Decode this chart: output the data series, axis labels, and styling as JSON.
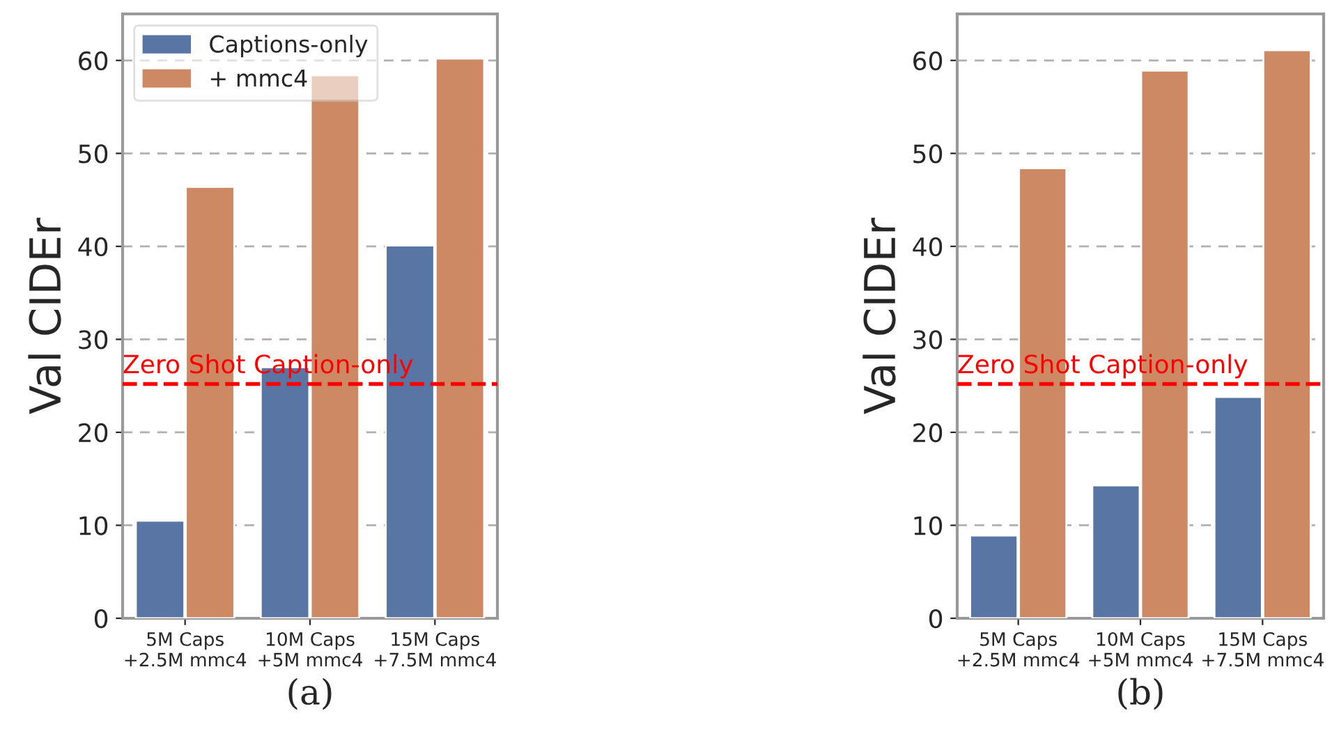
{
  "chart_data": [
    {
      "type": "bar",
      "xlabel": "(a)",
      "ylabel": "Val CIDEr",
      "categories": [
        "5M Caps\n+2.5M mmc4",
        "10M Caps\n+5M mmc4",
        "15M Caps\n+7.5M mmc4"
      ],
      "series": [
        {
          "name": "Captions-only",
          "color": "#5975a4",
          "values": [
            10.5,
            27,
            40.1
          ]
        },
        {
          "name": "+ mmc4",
          "color": "#cc8963",
          "values": [
            46.4,
            58.4,
            60.2
          ]
        }
      ],
      "ylim": [
        0,
        65
      ],
      "yticks": [
        0,
        10,
        20,
        30,
        40,
        50,
        60
      ],
      "grid": "y",
      "legend": "top left",
      "ref_lines": [
        {
          "axis": "y",
          "value": 25.2,
          "label": "Zero Shot Caption-only",
          "color": "#ff0000",
          "line_style": "dashed"
        }
      ]
    },
    {
      "type": "bar",
      "xlabel": "(b)",
      "ylabel": "Val CIDEr",
      "categories": [
        "5M Caps\n+2.5M mmc4",
        "10M Caps\n+5M mmc4",
        "15M Caps\n+7.5M mmc4"
      ],
      "series": [
        {
          "color": "#5975a4",
          "values": [
            8.9,
            14.3,
            23.8
          ]
        },
        {
          "color": "#cc8963",
          "values": [
            48.4,
            58.9,
            61.1
          ]
        }
      ],
      "ylim": [
        0,
        65
      ],
      "yticks": [
        0,
        10,
        20,
        30,
        40,
        50,
        60
      ],
      "grid": "y",
      "ref_lines": [
        {
          "axis": "y",
          "value": 25.2,
          "label": "Zero Shot Caption-only",
          "color": "#ff0000",
          "line_style": "dashed"
        }
      ]
    }
  ]
}
